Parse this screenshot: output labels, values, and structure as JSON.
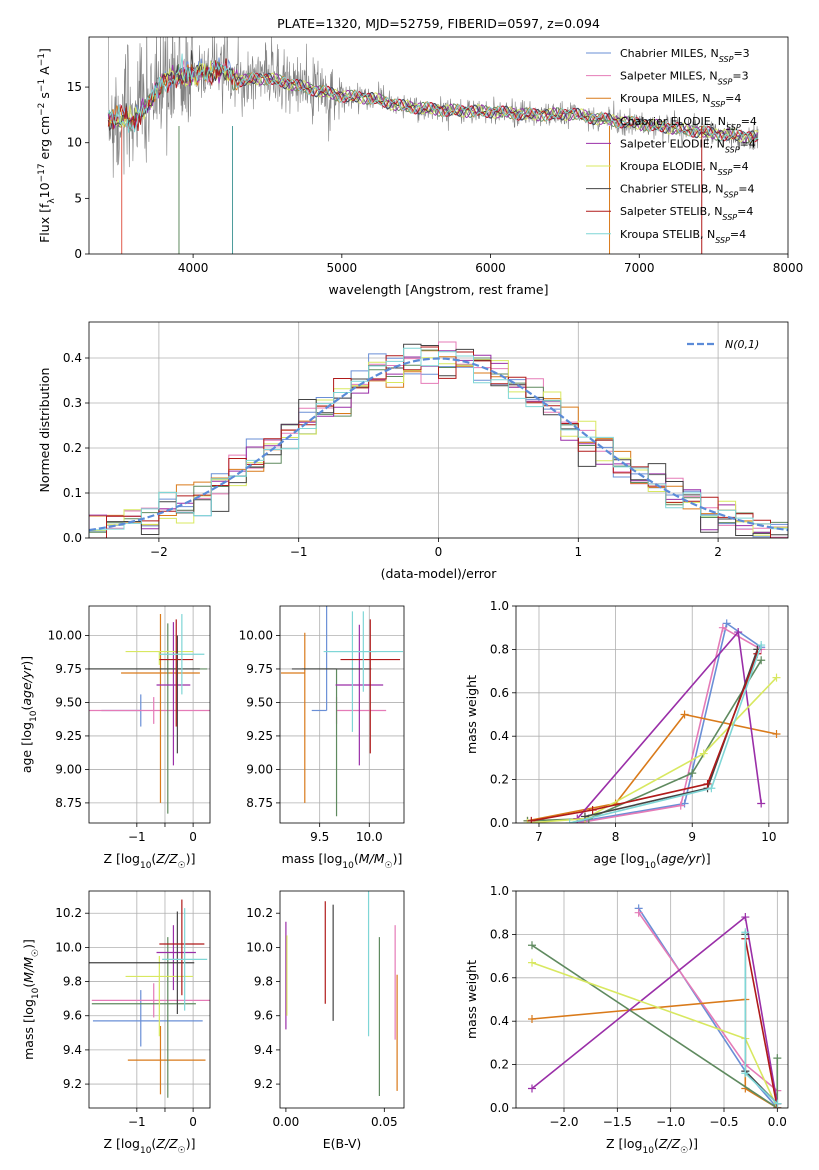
{
  "chart_data": [
    {
      "id": "spectrum",
      "type": "line",
      "title": "PLATE=1320, MJD=52759, FIBERID=0597, z=0.094",
      "xlabel": "wavelength [Angstrom, rest frame]",
      "ylabel": "Flux [f_λ10^-17 erg cm^-2 s^-1 A^-1]",
      "xlim": [
        3300,
        8000
      ],
      "ylim": [
        0,
        19.5
      ],
      "xticks": [
        4000,
        5000,
        6000,
        7000,
        8000
      ],
      "yticks": [
        0,
        5,
        10,
        15
      ],
      "grid": false,
      "legend_position": "top-right",
      "data_color": "#808080",
      "continuum": {
        "x": [
          3430,
          3600,
          3700,
          3800,
          3900,
          4000,
          4100,
          4200,
          4300,
          4500,
          4800,
          5000,
          5200,
          5400,
          5700,
          6000,
          6300,
          6560,
          6700,
          7000,
          7300,
          7500,
          7800
        ],
        "y": [
          12.2,
          12.0,
          13.5,
          15.5,
          16.0,
          16.2,
          16.3,
          16.6,
          15.6,
          15.8,
          14.8,
          14.2,
          14.0,
          13.3,
          12.9,
          12.8,
          12.5,
          12.6,
          12.2,
          11.7,
          11.2,
          10.8,
          10.5
        ]
      },
      "series": [
        {
          "name": "Chabrier MILES, N_SSP=3",
          "color": "#6a8fd6"
        },
        {
          "name": "Salpeter MILES, N_SSP=3",
          "color": "#e57bb7"
        },
        {
          "name": "Kroupa MILES, N_SSP=4",
          "color": "#d97a1a"
        },
        {
          "name": "Chabrier ELODIE, N_SSP=4",
          "color": "#5f8a5f"
        },
        {
          "name": "Salpeter ELODIE, N_SSP=4",
          "color": "#9a2fa8"
        },
        {
          "name": "Kroupa ELODIE, N_SSP=4",
          "color": "#d8e860"
        },
        {
          "name": "Chabrier STELIB, N_SSP=4",
          "color": "#444444"
        },
        {
          "name": "Salpeter STELIB, N_SSP=4",
          "color": "#b01a1a"
        },
        {
          "name": "Kroupa STELIB, N_SSP=4",
          "color": "#7fd6d6"
        }
      ],
      "legend_labels": [
        {
          "text": "Chabrier MILES, N",
          "sub": "SSP",
          "tail": "=3"
        },
        {
          "text": "Salpeter MILES, N",
          "sub": "SSP",
          "tail": "=3"
        },
        {
          "text": "Kroupa MILES, N",
          "sub": "SSP",
          "tail": "=4"
        },
        {
          "text": "Chabrier ELODIE, N",
          "sub": "SSP",
          "tail": "=4"
        },
        {
          "text": "Salpeter ELODIE, N",
          "sub": "SSP",
          "tail": "=4"
        },
        {
          "text": "Kroupa ELODIE, N",
          "sub": "SSP",
          "tail": "=4"
        },
        {
          "text": "Chabrier STELIB, N",
          "sub": "SSP",
          "tail": "=4"
        },
        {
          "text": "Salpeter STELIB, N",
          "sub": "SSP",
          "tail": "=4"
        },
        {
          "text": "Kroupa STELIB, N",
          "sub": "SSP",
          "tail": "=4"
        }
      ]
    },
    {
      "id": "residuals",
      "type": "line",
      "xlabel": "(data-model)/error",
      "ylabel": "Normed distribution",
      "xlim": [
        -2.5,
        2.5
      ],
      "ylim": [
        0,
        0.48
      ],
      "xticks": [
        -2,
        -1,
        0,
        1,
        2
      ],
      "yticks": [
        0.0,
        0.1,
        0.2,
        0.3,
        0.4
      ],
      "grid": true,
      "legend_position": "top-right",
      "reference_label": "N(0,1)",
      "reference_color": "#5b8bd8",
      "bins": 40
    },
    {
      "id": "age-vs-Z",
      "type": "scatter",
      "xlabel": "Z [log10(Z/Z☉)]",
      "ylabel": "age [log10(age/yr)]",
      "xlim": [
        -1.85,
        0.3
      ],
      "ylim": [
        8.6,
        10.22
      ],
      "xticks": [
        -1,
        -0.5,
        0
      ],
      "xticklabels": [
        "−1",
        "",
        "0"
      ],
      "yticks": [
        8.75,
        9.0,
        9.25,
        9.5,
        9.75,
        10.0
      ],
      "grid": true,
      "points": [
        {
          "x": -0.93,
          "xerr": [
            0.7,
            0.0
          ],
          "y": 9.44,
          "yerr": [
            0.12,
            0.12
          ],
          "color": "#6a8fd6"
        },
        {
          "x": -0.7,
          "xerr": [
            1.2,
            1.2
          ],
          "y": 9.44,
          "yerr": [
            0.1,
            0.1
          ],
          "color": "#e57bb7"
        },
        {
          "x": -0.58,
          "xerr": [
            0.7,
            0.7
          ],
          "y": 9.72,
          "yerr": [
            0.97,
            0.44
          ],
          "color": "#d97a1a"
        },
        {
          "x": -0.45,
          "xerr": [
            1.4,
            0.7
          ],
          "y": 9.75,
          "yerr": [
            1.08,
            0.34
          ],
          "color": "#5f8a5f"
        },
        {
          "x": -0.35,
          "xerr": [
            0.3,
            0.3
          ],
          "y": 9.63,
          "yerr": [
            0.6,
            0.47
          ],
          "color": "#9a2fa8"
        },
        {
          "x": -0.6,
          "xerr": [
            0.6,
            0.6
          ],
          "y": 9.88,
          "yerr": [
            0.1,
            0.0
          ],
          "color": "#d8e860"
        },
        {
          "x": -0.28,
          "xerr": [
            1.6,
            0.4
          ],
          "y": 9.75,
          "yerr": [
            0.63,
            0.25
          ],
          "color": "#444444"
        },
        {
          "x": -0.3,
          "xerr": [
            0.3,
            0.3
          ],
          "y": 9.82,
          "yerr": [
            0.5,
            0.3
          ],
          "color": "#b01a1a"
        },
        {
          "x": -0.2,
          "xerr": [
            0.4,
            0.4
          ],
          "y": 9.86,
          "yerr": [
            0.3,
            0.3
          ],
          "color": "#7fd6d6"
        }
      ]
    },
    {
      "id": "age-vs-mass",
      "type": "scatter",
      "xlabel": "mass [log10(M/M☉)]",
      "ylabel": "",
      "xlim": [
        9.1,
        10.35
      ],
      "ylim": [
        8.6,
        10.22
      ],
      "xticks": [
        9.5,
        10.0
      ],
      "xticklabels": [
        "9.5",
        "10.0"
      ],
      "yticks": [
        8.75,
        9.0,
        9.25,
        9.5,
        9.75,
        10.0
      ],
      "grid": true,
      "points": [
        {
          "x": 9.57,
          "xerr": [
            0.15,
            0.0
          ],
          "y": 9.44,
          "yerr": [
            0.0,
            0.88
          ],
          "color": "#6a8fd6"
        },
        {
          "x": 9.67,
          "xerr": [
            0.0,
            0.5
          ],
          "y": 9.44,
          "yerr": [
            0.1,
            0.1
          ],
          "color": "#e57bb7"
        },
        {
          "x": 9.35,
          "xerr": [
            0.24,
            0.0
          ],
          "y": 9.72,
          "yerr": [
            0.97,
            0.3
          ],
          "color": "#d97a1a"
        },
        {
          "x": 9.67,
          "xerr": [
            0.35,
            0.0
          ],
          "y": 9.75,
          "yerr": [
            1.1,
            0.0
          ],
          "color": "#5f8a5f"
        },
        {
          "x": 9.9,
          "xerr": [
            0.24,
            0.24
          ],
          "y": 9.63,
          "yerr": [
            0.6,
            0.45
          ],
          "color": "#9a2fa8"
        },
        {
          "x": 9.83,
          "xerr": [
            0.24,
            0.24
          ],
          "y": 9.88,
          "yerr": [
            0.6,
            0.3
          ],
          "color": "#7fd6d6"
        },
        {
          "x": 9.62,
          "xerr": [
            0.4,
            0.4
          ],
          "y": 9.75,
          "yerr": [
            0.0,
            0.0
          ],
          "color": "#444444"
        },
        {
          "x": 10.01,
          "xerr": [
            0.3,
            0.3
          ],
          "y": 9.82,
          "yerr": [
            0.7,
            0.3
          ],
          "color": "#b01a1a"
        },
        {
          "x": 9.94,
          "xerr": [
            0.4,
            0.4
          ],
          "y": 9.88,
          "yerr": [
            0.3,
            0.3
          ],
          "color": "#7fd6d6"
        }
      ]
    },
    {
      "id": "weight-vs-age",
      "type": "line",
      "xlabel": "age [log10(age/yr)]",
      "ylabel": "mass weight",
      "xlim": [
        6.7,
        10.25
      ],
      "ylim": [
        0,
        1
      ],
      "xticks": [
        7,
        8,
        9,
        10
      ],
      "yticks": [
        0.0,
        0.2,
        0.4,
        0.6,
        0.8,
        1.0
      ],
      "grid": true,
      "series": [
        {
          "color": "#6a8fd6",
          "x": [
            7.5,
            8.9,
            9.45,
            9.9
          ],
          "y": [
            0.005,
            0.09,
            0.92,
            0.81
          ]
        },
        {
          "color": "#e57bb7",
          "x": [
            7.5,
            8.85,
            9.4,
            9.9
          ],
          "y": [
            0.0,
            0.08,
            0.9,
            0.8
          ]
        },
        {
          "color": "#d97a1a",
          "x": [
            6.85,
            8.0,
            8.9,
            10.1
          ],
          "y": [
            0.01,
            0.09,
            0.5,
            0.41
          ]
        },
        {
          "color": "#5f8a5f",
          "x": [
            6.85,
            7.65,
            9.0,
            9.9
          ],
          "y": [
            0.01,
            0.02,
            0.23,
            0.75
          ]
        },
        {
          "color": "#9a2fa8",
          "x": [
            7.5,
            9.6,
            9.9
          ],
          "y": [
            0.02,
            0.88,
            0.09
          ]
        },
        {
          "color": "#d8e860",
          "x": [
            6.85,
            7.6,
            9.15,
            10.1
          ],
          "y": [
            0.0,
            0.02,
            0.32,
            0.67
          ]
        },
        {
          "color": "#444444",
          "x": [
            7.6,
            9.2,
            9.85
          ],
          "y": [
            0.03,
            0.16,
            0.8
          ]
        },
        {
          "color": "#b01a1a",
          "x": [
            6.9,
            7.7,
            9.2,
            9.85
          ],
          "y": [
            0.01,
            0.06,
            0.18,
            0.78
          ]
        },
        {
          "color": "#7fd6d6",
          "x": [
            7.4,
            9.25,
            9.9
          ],
          "y": [
            0.0,
            0.16,
            0.82
          ]
        }
      ]
    },
    {
      "id": "mass-vs-Z",
      "type": "scatter",
      "xlabel": "Z [log10(Z/Z☉)]",
      "ylabel": "mass [log10(M/M☉)]",
      "xlim": [
        -1.85,
        0.3
      ],
      "ylim": [
        9.06,
        10.33
      ],
      "xticks": [
        -1,
        -0.5,
        0
      ],
      "xticklabels": [
        "−1",
        "",
        "0"
      ],
      "yticks": [
        9.2,
        9.4,
        9.6,
        9.8,
        10.0,
        10.2
      ],
      "grid": true,
      "points": [
        {
          "x": -0.93,
          "xerr": [
            0.85,
            1.1
          ],
          "y": 9.57,
          "yerr": [
            0.15,
            0.18
          ],
          "color": "#6a8fd6"
        },
        {
          "x": -0.7,
          "xerr": [
            1.1,
            1.1
          ],
          "y": 9.69,
          "yerr": [
            0.1,
            0.1
          ],
          "color": "#e57bb7"
        },
        {
          "x": -0.58,
          "xerr": [
            0.58,
            0.8
          ],
          "y": 9.34,
          "yerr": [
            0.2,
            0.2
          ],
          "color": "#d97a1a"
        },
        {
          "x": -0.45,
          "xerr": [
            1.35,
            0.5
          ],
          "y": 9.67,
          "yerr": [
            0.55,
            0.39
          ],
          "color": "#5f8a5f"
        },
        {
          "x": -0.35,
          "xerr": [
            0.3,
            0.4
          ],
          "y": 9.97,
          "yerr": [
            0.22,
            0.16
          ],
          "color": "#9a2fa8"
        },
        {
          "x": -0.6,
          "xerr": [
            0.6,
            0.6
          ],
          "y": 9.83,
          "yerr": [
            0.35,
            0.12
          ],
          "color": "#d8e860"
        },
        {
          "x": -0.28,
          "xerr": [
            1.6,
            0.3
          ],
          "y": 9.91,
          "yerr": [
            0.3,
            0.3
          ],
          "color": "#444444"
        },
        {
          "x": -0.2,
          "xerr": [
            0.4,
            0.4
          ],
          "y": 10.02,
          "yerr": [
            0.3,
            0.26
          ],
          "color": "#b01a1a"
        },
        {
          "x": -0.15,
          "xerr": [
            0.4,
            0.4
          ],
          "y": 9.93,
          "yerr": [
            0.3,
            0.3
          ],
          "color": "#7fd6d6"
        }
      ]
    },
    {
      "id": "mass-vs-ebv",
      "type": "scatter",
      "xlabel": "E(B-V)",
      "ylabel": "",
      "xlim": [
        -0.003,
        0.06
      ],
      "ylim": [
        9.06,
        10.33
      ],
      "xticks": [
        0.0,
        0.05
      ],
      "xticklabels": [
        "0.00",
        "0.05"
      ],
      "yticks": [
        9.2,
        9.4,
        9.6,
        9.8,
        10.0,
        10.2
      ],
      "grid": false,
      "points": [
        {
          "x": 0.0,
          "y": 9.9,
          "yerr": [
            0.38,
            0.25
          ],
          "color": "#9a2fa8"
        },
        {
          "x": 0.0005,
          "y": 9.82,
          "yerr": [
            0.22,
            0.25
          ],
          "color": "#d8e860"
        },
        {
          "x": 0.02,
          "y": 9.97,
          "yerr": [
            0.3,
            0.3
          ],
          "color": "#b01a1a"
        },
        {
          "x": 0.024,
          "y": 9.91,
          "yerr": [
            0.34,
            0.34
          ],
          "color": "#444444"
        },
        {
          "x": 0.042,
          "y": 9.92,
          "yerr": [
            0.44,
            0.45
          ],
          "color": "#7fd6d6"
        },
        {
          "x": 0.0475,
          "y": 9.58,
          "yerr": [
            0.45,
            0.48
          ],
          "color": "#5f8a5f"
        },
        {
          "x": 0.0555,
          "y": 9.82,
          "yerr": [
            0.36,
            0.31
          ],
          "color": "#e57bb7"
        },
        {
          "x": 0.0565,
          "y": 9.5,
          "yerr": [
            0.34,
            0.34
          ],
          "color": "#d97a1a"
        }
      ]
    },
    {
      "id": "weight-vs-Z",
      "type": "line",
      "xlabel": "Z [log10(Z/Z☉)]",
      "ylabel": "mass weight",
      "xlim": [
        -2.45,
        0.1
      ],
      "ylim": [
        0,
        1
      ],
      "xticks": [
        -2.0,
        -1.5,
        -1.0,
        -0.5,
        0.0
      ],
      "xticklabels": [
        "−2.0",
        "−1.5",
        "−1.0",
        "−0.5",
        "0.0"
      ],
      "yticks": [
        0.0,
        0.2,
        0.4,
        0.6,
        0.8,
        1.0
      ],
      "grid": true,
      "series": [
        {
          "color": "#6a8fd6",
          "x": [
            -1.3,
            -0.3,
            0.0
          ],
          "y": [
            0.92,
            0.17,
            0.0
          ]
        },
        {
          "color": "#e57bb7",
          "x": [
            -1.3,
            -0.3,
            0.0
          ],
          "y": [
            0.9,
            0.2,
            0.08
          ]
        },
        {
          "color": "#d97a1a",
          "x": [
            -2.3,
            -0.3,
            -0.3,
            0.0
          ],
          "y": [
            0.41,
            0.5,
            0.09,
            0.0
          ]
        },
        {
          "color": "#5f8a5f",
          "x": [
            -2.3,
            0.0,
            0.0
          ],
          "y": [
            0.75,
            0.0,
            0.23
          ]
        },
        {
          "color": "#9a2fa8",
          "x": [
            -2.3,
            -0.3,
            0.0
          ],
          "y": [
            0.09,
            0.88,
            0.02
          ]
        },
        {
          "color": "#d8e860",
          "x": [
            -2.3,
            -0.3,
            0.0
          ],
          "y": [
            0.67,
            0.32,
            0.0
          ]
        },
        {
          "color": "#444444",
          "x": [
            -0.3,
            -0.3,
            0.0
          ],
          "y": [
            0.8,
            0.17,
            0.02
          ]
        },
        {
          "color": "#b01a1a",
          "x": [
            -0.3,
            0.0
          ],
          "y": [
            0.78,
            0.0
          ]
        },
        {
          "color": "#7fd6d6",
          "x": [
            -0.3,
            -0.3,
            0.0
          ],
          "y": [
            0.81,
            0.16,
            0.02
          ]
        }
      ]
    }
  ]
}
